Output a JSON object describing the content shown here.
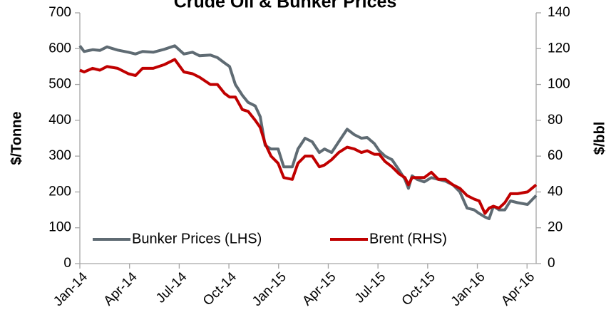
{
  "chart_data": {
    "type": "line",
    "title": "Crude Oil & Bunker Prices",
    "y_label": "$/Tonne",
    "y2_label": "$/bbl",
    "x": [
      0,
      0.26,
      0.77,
      1.21,
      1.64,
      2.28,
      2.93,
      3.36,
      3.79,
      4.43,
      5.08,
      5.73,
      6.28,
      6.8,
      7.23,
      7.88,
      8.31,
      8.74,
      9.04,
      9.39,
      9.81,
      10.16,
      10.59,
      10.89,
      11.19,
      11.54,
      11.97,
      12.31,
      12.83,
      13.17,
      13.6,
      14.03,
      14.46,
      14.77,
      15.2,
      15.63,
      16.14,
      16.57,
      17.0,
      17.35,
      17.78,
      18.08,
      18.43,
      18.85,
      19.29,
      19.63,
      19.84,
      20.06,
      20.36,
      20.79,
      21.22,
      21.65,
      22.08,
      22.52,
      22.95,
      23.38,
      23.81,
      24.11,
      24.46,
      24.71,
      24.97,
      25.31,
      25.66,
      26.0,
      26.43,
      27.03,
      27.55
    ],
    "series": [
      {
        "name": "Bunker Prices (LHS)",
        "color": "#5f6b73",
        "axis": "y",
        "values": [
          608,
          592,
          597,
          595,
          605,
          596,
          590,
          585,
          592,
          590,
          598,
          608,
          585,
          590,
          580,
          582,
          575,
          560,
          550,
          500,
          470,
          450,
          440,
          410,
          330,
          320,
          320,
          270,
          270,
          320,
          350,
          340,
          310,
          320,
          310,
          340,
          375,
          360,
          350,
          352,
          335,
          315,
          300,
          290,
          260,
          235,
          210,
          245,
          235,
          228,
          240,
          235,
          230,
          220,
          200,
          155,
          150,
          140,
          130,
          125,
          160,
          150,
          150,
          175,
          170,
          165,
          190
        ]
      },
      {
        "name": "Brent (RHS)",
        "color": "#c00000",
        "axis": "y2",
        "values": [
          108,
          107,
          109,
          108,
          110,
          109,
          106,
          105,
          109,
          109,
          111,
          114,
          107,
          106,
          104,
          100,
          100,
          95,
          93,
          93,
          86,
          85,
          80,
          76,
          67,
          60,
          56,
          48,
          47,
          56,
          60,
          60,
          54,
          55,
          58,
          62,
          65,
          64,
          62,
          63,
          61,
          61,
          57,
          54,
          50,
          48,
          44,
          48,
          48,
          48,
          51,
          47,
          47,
          44,
          42,
          38,
          36,
          35,
          28,
          31,
          32,
          31,
          34,
          39,
          39,
          40,
          44
        ]
      }
    ],
    "xlim": [
      0,
      27.55
    ],
    "xticks": [
      {
        "value": 0,
        "label": "Jan-14"
      },
      {
        "value": 3,
        "label": "Apr-14"
      },
      {
        "value": 6,
        "label": "Jul-14"
      },
      {
        "value": 9,
        "label": "Oct-14"
      },
      {
        "value": 12,
        "label": "Jan-15"
      },
      {
        "value": 15,
        "label": "Apr-15"
      },
      {
        "value": 18,
        "label": "Jul-15"
      },
      {
        "value": 21,
        "label": "Oct-15"
      },
      {
        "value": 24,
        "label": "Jan-16"
      },
      {
        "value": 27,
        "label": "Apr-16"
      }
    ],
    "ylim": [
      0,
      700
    ],
    "yticks": [
      0,
      100,
      200,
      300,
      400,
      500,
      600,
      700
    ],
    "y2lim": [
      0,
      140
    ],
    "y2ticks": [
      0,
      20,
      40,
      60,
      80,
      100,
      120,
      140
    ],
    "legend": "bottom"
  }
}
